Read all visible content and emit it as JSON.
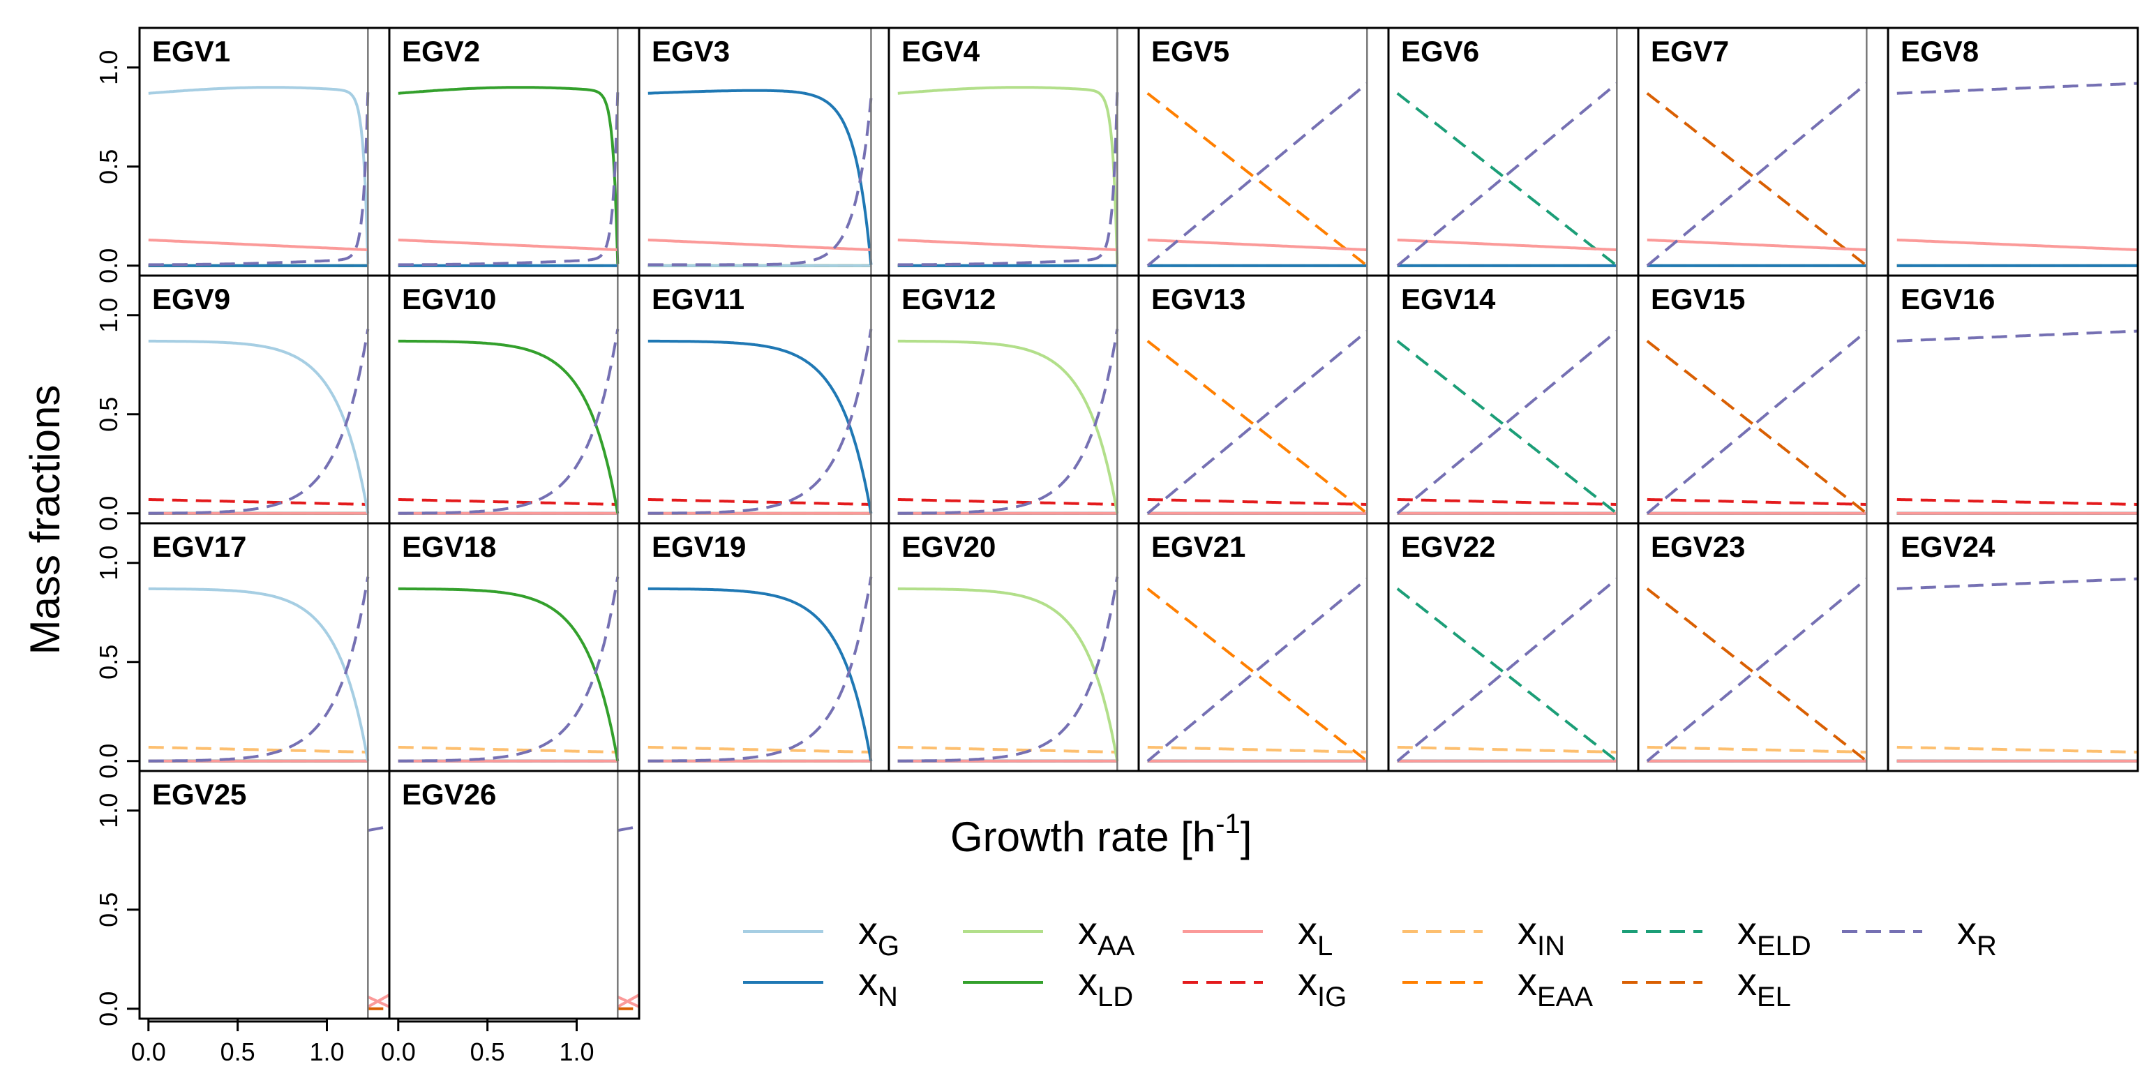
{
  "figure": {
    "ylabel": "Mass fractions",
    "xlabel_main": "Growth rate [h",
    "xlabel_sup": "-1",
    "xlabel_end": "]"
  },
  "chart_data": {
    "type": "line",
    "layout": "small-multiples, 8 columns, 4 rows (26 panels)",
    "panels": [
      "EGV1",
      "EGV2",
      "EGV3",
      "EGV4",
      "EGV5",
      "EGV6",
      "EGV7",
      "EGV8",
      "EGV9",
      "EGV10",
      "EGV11",
      "EGV12",
      "EGV13",
      "EGV14",
      "EGV15",
      "EGV16",
      "EGV17",
      "EGV18",
      "EGV19",
      "EGV20",
      "EGV21",
      "EGV22",
      "EGV23",
      "EGV24",
      "EGV25",
      "EGV26"
    ],
    "xlim": [
      -0.05,
      1.35
    ],
    "ylim": [
      -0.05,
      1.2
    ],
    "x_ticks": [
      0.0,
      0.5,
      1.0
    ],
    "x_tick_labels": [
      "0.0",
      "0.5",
      "1.0"
    ],
    "y_ticks": [
      0.0,
      0.5,
      1.0
    ],
    "y_tick_labels": [
      "0.0",
      "0.5",
      "1.0"
    ],
    "vline_at": [
      1.23,
      1.23,
      1.25,
      1.23,
      1.23,
      1.23,
      1.23,
      1.35,
      1.23,
      1.23,
      1.25,
      1.23,
      1.23,
      1.23,
      1.23,
      1.35,
      1.23,
      1.23,
      1.25,
      1.23,
      1.23,
      1.23,
      1.23,
      1.35,
      1.23,
      1.23
    ],
    "series": [
      {
        "key": "G",
        "label_main": "x",
        "label_sub": "G",
        "color": "#a6cee3",
        "dash": false
      },
      {
        "key": "N",
        "label_main": "x",
        "label_sub": "N",
        "color": "#1f78b4",
        "dash": false
      },
      {
        "key": "AA",
        "label_main": "x",
        "label_sub": "AA",
        "color": "#b2df8a",
        "dash": false
      },
      {
        "key": "LD",
        "label_main": "x",
        "label_sub": "LD",
        "color": "#33a02c",
        "dash": false
      },
      {
        "key": "L",
        "label_main": "x",
        "label_sub": "L",
        "color": "#fb9a99",
        "dash": false
      },
      {
        "key": "IG",
        "label_main": "x",
        "label_sub": "IG",
        "color": "#e31a1c",
        "dash": true
      },
      {
        "key": "IN",
        "label_main": "x",
        "label_sub": "IN",
        "color": "#fdbf6f",
        "dash": true
      },
      {
        "key": "EAA",
        "label_main": "x",
        "label_sub": "EAA",
        "color": "#ff7f00",
        "dash": true
      },
      {
        "key": "ELD",
        "label_main": "x",
        "label_sub": "ELD",
        "color": "#1b9e77",
        "dash": true
      },
      {
        "key": "EL",
        "label_main": "x",
        "label_sub": "EL",
        "color": "#d95f02",
        "dash": true
      },
      {
        "key": "R",
        "label_main": "x",
        "label_sub": "R",
        "color": "#7570b3",
        "dash": true
      }
    ],
    "panel_type": [
      "A",
      "A",
      "A",
      "A",
      "B",
      "B",
      "B",
      "C",
      "A",
      "A",
      "A",
      "A",
      "B",
      "B",
      "B",
      "C",
      "A",
      "A",
      "A",
      "A",
      "B",
      "B",
      "B",
      "C",
      "D",
      "D"
    ],
    "panel_growth": [
      "G",
      "LD",
      "N",
      "AA",
      "EAA",
      "ELD",
      "EL",
      "",
      "G",
      "LD",
      "N",
      "AA",
      "EAA",
      "ELD",
      "EL",
      "",
      "G",
      "LD",
      "N",
      "AA",
      "EAA",
      "ELD",
      "EL",
      "",
      "",
      ""
    ],
    "panel_lipid": [
      "L",
      "L",
      "L",
      "L",
      "L",
      "L",
      "L",
      "L",
      "IG",
      "IG",
      "IG",
      "IG",
      "IG",
      "IG",
      "IG",
      "IG",
      "IN",
      "IN",
      "IN",
      "IN",
      "IN",
      "IN",
      "IN",
      "IN",
      "L",
      "L"
    ],
    "panel_row": [
      1,
      1,
      1,
      1,
      1,
      1,
      1,
      1,
      2,
      2,
      2,
      2,
      2,
      2,
      2,
      2,
      3,
      3,
      3,
      3,
      3,
      3,
      3,
      3,
      4,
      4
    ]
  }
}
